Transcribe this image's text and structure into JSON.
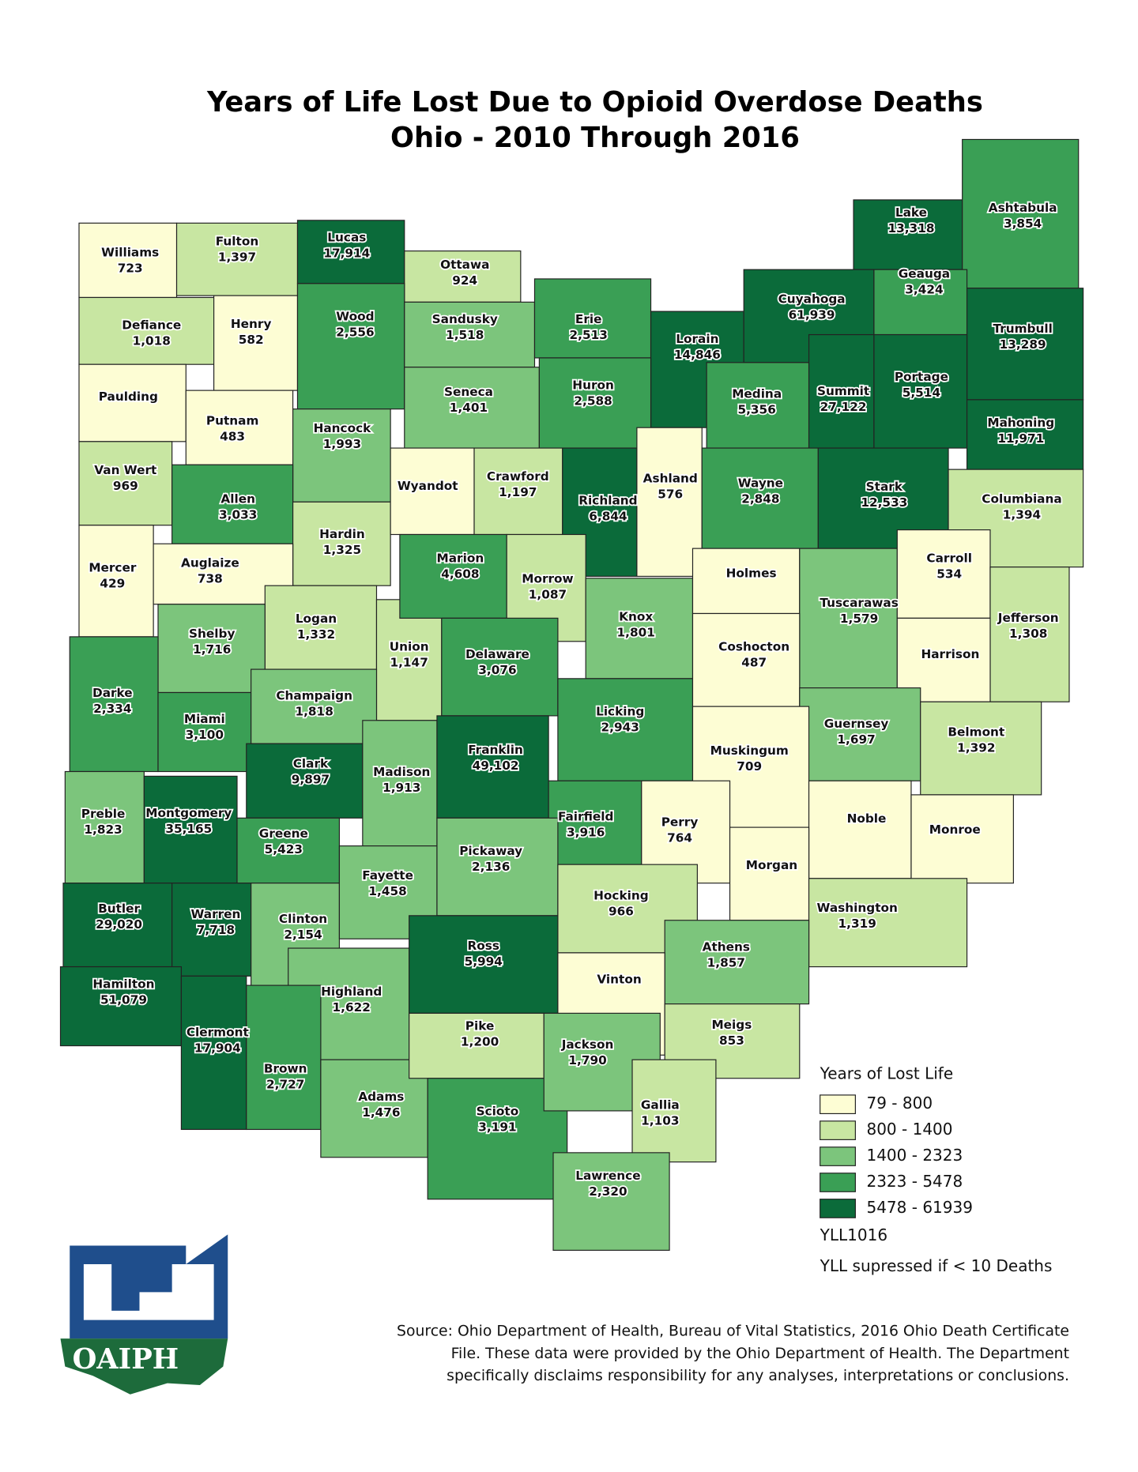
{
  "title": [
    "Years of Life Lost Due to Opioid Overdose Deaths",
    "Ohio - 2010 Through 2016"
  ],
  "counties": [
    {
      "name": "Williams",
      "value": 723,
      "value_label": "723"
    },
    {
      "name": "Fulton",
      "value": 1397,
      "value_label": "1,397"
    },
    {
      "name": "Lucas",
      "value": 17914,
      "value_label": "17,914"
    },
    {
      "name": "Ottawa",
      "value": 924,
      "value_label": "924"
    },
    {
      "name": "Lake",
      "value": 13318,
      "value_label": "13,318"
    },
    {
      "name": "Ashtabula",
      "value": 3854,
      "value_label": "3,854"
    },
    {
      "name": "Defiance",
      "value": 1018,
      "value_label": "1,018"
    },
    {
      "name": "Henry",
      "value": 582,
      "value_label": "582"
    },
    {
      "name": "Wood",
      "value": 2556,
      "value_label": "2,556"
    },
    {
      "name": "Sandusky",
      "value": 1518,
      "value_label": "1,518"
    },
    {
      "name": "Erie",
      "value": 2513,
      "value_label": "2,513"
    },
    {
      "name": "Lorain",
      "value": 14846,
      "value_label": "14,846"
    },
    {
      "name": "Cuyahoga",
      "value": 61939,
      "value_label": "61,939"
    },
    {
      "name": "Geauga",
      "value": 3424,
      "value_label": "3,424"
    },
    {
      "name": "Trumbull",
      "value": 13289,
      "value_label": "13,289"
    },
    {
      "name": "Paulding",
      "value": null
    },
    {
      "name": "Putnam",
      "value": 483,
      "value_label": "483"
    },
    {
      "name": "Hancock",
      "value": 1993,
      "value_label": "1,993"
    },
    {
      "name": "Seneca",
      "value": 1401,
      "value_label": "1,401"
    },
    {
      "name": "Huron",
      "value": 2588,
      "value_label": "2,588"
    },
    {
      "name": "Medina",
      "value": 5356,
      "value_label": "5,356"
    },
    {
      "name": "Summit",
      "value": 27122,
      "value_label": "27,122"
    },
    {
      "name": "Portage",
      "value": 5514,
      "value_label": "5,514"
    },
    {
      "name": "Mahoning",
      "value": 11971,
      "value_label": "11,971"
    },
    {
      "name": "Van Wert",
      "value": 969,
      "value_label": "969"
    },
    {
      "name": "Allen",
      "value": 3033,
      "value_label": "3,033"
    },
    {
      "name": "Hardin",
      "value": 1325,
      "value_label": "1,325"
    },
    {
      "name": "Wyandot",
      "value": null
    },
    {
      "name": "Crawford",
      "value": 1197,
      "value_label": "1,197"
    },
    {
      "name": "Richland",
      "value": 6844,
      "value_label": "6,844"
    },
    {
      "name": "Ashland",
      "value": 576,
      "value_label": "576"
    },
    {
      "name": "Wayne",
      "value": 2848,
      "value_label": "2,848"
    },
    {
      "name": "Stark",
      "value": 12533,
      "value_label": "12,533"
    },
    {
      "name": "Columbiana",
      "value": 1394,
      "value_label": "1,394"
    },
    {
      "name": "Mercer",
      "value": 429,
      "value_label": "429"
    },
    {
      "name": "Auglaize",
      "value": 738,
      "value_label": "738"
    },
    {
      "name": "Logan",
      "value": 1332,
      "value_label": "1,332"
    },
    {
      "name": "Union",
      "value": 1147,
      "value_label": "1,147"
    },
    {
      "name": "Marion",
      "value": 4608,
      "value_label": "4,608"
    },
    {
      "name": "Morrow",
      "value": 1087,
      "value_label": "1,087"
    },
    {
      "name": "Knox",
      "value": 1801,
      "value_label": "1,801"
    },
    {
      "name": "Holmes",
      "value": null
    },
    {
      "name": "Tuscarawas",
      "value": 1579,
      "value_label": "1,579"
    },
    {
      "name": "Carroll",
      "value": 534,
      "value_label": "534"
    },
    {
      "name": "Jefferson",
      "value": 1308,
      "value_label": "1,308"
    },
    {
      "name": "Harrison",
      "value": null
    },
    {
      "name": "Shelby",
      "value": 1716,
      "value_label": "1,716"
    },
    {
      "name": "Darke",
      "value": 2334,
      "value_label": "2,334"
    },
    {
      "name": "Miami",
      "value": 3100,
      "value_label": "3,100"
    },
    {
      "name": "Champaign",
      "value": 1818,
      "value_label": "1,818"
    },
    {
      "name": "Delaware",
      "value": 3076,
      "value_label": "3,076"
    },
    {
      "name": "Licking",
      "value": 2943,
      "value_label": "2,943"
    },
    {
      "name": "Coshocton",
      "value": 487,
      "value_label": "487"
    },
    {
      "name": "Guernsey",
      "value": 1697,
      "value_label": "1,697"
    },
    {
      "name": "Belmont",
      "value": 1392,
      "value_label": "1,392"
    },
    {
      "name": "Clark",
      "value": 9897,
      "value_label": "9,897"
    },
    {
      "name": "Madison",
      "value": 1913,
      "value_label": "1,913"
    },
    {
      "name": "Franklin",
      "value": 49102,
      "value_label": "49,102"
    },
    {
      "name": "Fairfield",
      "value": 3916,
      "value_label": "3,916"
    },
    {
      "name": "Muskingum",
      "value": 709,
      "value_label": "709"
    },
    {
      "name": "Perry",
      "value": 764,
      "value_label": "764"
    },
    {
      "name": "Noble",
      "value": null
    },
    {
      "name": "Monroe",
      "value": null
    },
    {
      "name": "Preble",
      "value": 1823,
      "value_label": "1,823"
    },
    {
      "name": "Montgomery",
      "value": 35165,
      "value_label": "35,165"
    },
    {
      "name": "Greene",
      "value": 5423,
      "value_label": "5,423"
    },
    {
      "name": "Butler",
      "value": 29020,
      "value_label": "29,020"
    },
    {
      "name": "Warren",
      "value": 7718,
      "value_label": "7,718"
    },
    {
      "name": "Clinton",
      "value": 2154,
      "value_label": "2,154"
    },
    {
      "name": "Fayette",
      "value": 1458,
      "value_label": "1,458"
    },
    {
      "name": "Pickaway",
      "value": 2136,
      "value_label": "2,136"
    },
    {
      "name": "Hocking",
      "value": 966,
      "value_label": "966"
    },
    {
      "name": "Morgan",
      "value": null
    },
    {
      "name": "Washington",
      "value": 1319,
      "value_label": "1,319"
    },
    {
      "name": "Athens",
      "value": 1857,
      "value_label": "1,857"
    },
    {
      "name": "Hamilton",
      "value": 51079,
      "value_label": "51,079"
    },
    {
      "name": "Clermont",
      "value": 17904,
      "value_label": "17,904"
    },
    {
      "name": "Highland",
      "value": 1622,
      "value_label": "1,622"
    },
    {
      "name": "Ross",
      "value": 5994,
      "value_label": "5,994"
    },
    {
      "name": "Vinton",
      "value": null
    },
    {
      "name": "Meigs",
      "value": 853,
      "value_label": "853"
    },
    {
      "name": "Brown",
      "value": 2727,
      "value_label": "2,727"
    },
    {
      "name": "Adams",
      "value": 1476,
      "value_label": "1,476"
    },
    {
      "name": "Pike",
      "value": 1200,
      "value_label": "1,200"
    },
    {
      "name": "Scioto",
      "value": 3191,
      "value_label": "3,191"
    },
    {
      "name": "Jackson",
      "value": 1790,
      "value_label": "1,790"
    },
    {
      "name": "Gallia",
      "value": 1103,
      "value_label": "1,103"
    },
    {
      "name": "Lawrence",
      "value": 2320,
      "value_label": "2,320"
    }
  ],
  "legend": {
    "title": "Years of Lost Life",
    "breaks": [
      79,
      800,
      1400,
      2323,
      5478,
      61939
    ],
    "classes": [
      {
        "label": "79 - 800",
        "color": "#fdfdd4"
      },
      {
        "label": "800 - 1400",
        "color": "#c8e6a2"
      },
      {
        "label": "1400 - 2323",
        "color": "#7cc57c"
      },
      {
        "label": "2323 - 5478",
        "color": "#3a9f55"
      },
      {
        "label": "5478 - 61939",
        "color": "#0b6b3a"
      }
    ],
    "field": "YLL1016",
    "note": "YLL supressed if < 10 Deaths"
  },
  "source": [
    "Source: Ohio Department of Health, Bureau of Vital Statistics, 2016 Ohio Death Certificate",
    "File. These data were provided by the Ohio Department of Health. The Department",
    "specifically disclaims responsibility for any analyses, interpretations or conclusions."
  ],
  "logo_text": "OAIPH"
}
